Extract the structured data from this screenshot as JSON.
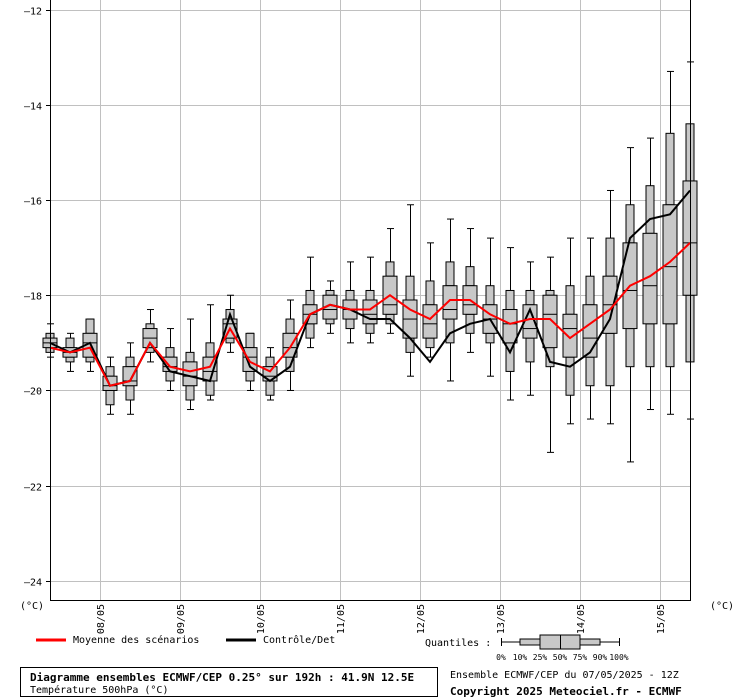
{
  "chart_data": {
    "type": "box",
    "y_unit_label": "(°C)",
    "ylim": [
      -24.4,
      -11.8
    ],
    "y_ticks": [
      -12,
      -14,
      -16,
      -18,
      -20,
      -22,
      -24
    ],
    "x_tick_labels": [
      "08/05",
      "09/05",
      "10/05",
      "11/05",
      "12/05",
      "13/05",
      "14/05",
      "15/05"
    ],
    "grid": true,
    "legend": [
      {
        "label": "Moyenne des scénarios",
        "color": "#ff0000"
      },
      {
        "label": "Contrôle/Det",
        "color": "#000000"
      }
    ],
    "quantiles_label": "Quantiles :",
    "quantile_names": [
      "0%",
      "10%",
      "25%",
      "50%",
      "75%",
      "90%",
      "100%"
    ],
    "steps": [
      {
        "min": -19.3,
        "p10": -19.2,
        "p25": -19.1,
        "median": -19.0,
        "p75": -18.9,
        "p90": -18.8,
        "max": -18.6,
        "mean": -19.1,
        "control": -19.0
      },
      {
        "min": -19.6,
        "p10": -19.4,
        "p25": -19.3,
        "median": -19.2,
        "p75": -19.1,
        "p90": -18.9,
        "max": -18.8,
        "mean": -19.2,
        "control": -19.2
      },
      {
        "min": -19.6,
        "p10": -19.4,
        "p25": -19.3,
        "median": -19.0,
        "p75": -18.8,
        "p90": -18.5,
        "max": -18.5,
        "mean": -19.1,
        "control": -19.0
      },
      {
        "min": -20.5,
        "p10": -20.3,
        "p25": -20.0,
        "median": -19.9,
        "p75": -19.7,
        "p90": -19.5,
        "max": -19.3,
        "mean": -19.9,
        "control": -19.9
      },
      {
        "min": -20.5,
        "p10": -20.2,
        "p25": -19.9,
        "median": -19.8,
        "p75": -19.5,
        "p90": -19.3,
        "max": -19.0,
        "mean": -19.8,
        "control": -19.8
      },
      {
        "min": -19.4,
        "p10": -19.2,
        "p25": -19.1,
        "median": -18.9,
        "p75": -18.7,
        "p90": -18.6,
        "max": -18.3,
        "mean": -19.0,
        "control": -19.0
      },
      {
        "min": -20.0,
        "p10": -19.8,
        "p25": -19.6,
        "median": -19.5,
        "p75": -19.3,
        "p90": -19.1,
        "max": -18.7,
        "mean": -19.5,
        "control": -19.6
      },
      {
        "min": -20.4,
        "p10": -20.2,
        "p25": -19.9,
        "median": -19.7,
        "p75": -19.4,
        "p90": -19.2,
        "max": -18.5,
        "mean": -19.6,
        "control": -19.7
      },
      {
        "min": -20.2,
        "p10": -20.1,
        "p25": -19.8,
        "median": -19.6,
        "p75": -19.3,
        "p90": -19.0,
        "max": -18.2,
        "mean": -19.5,
        "control": -19.8
      },
      {
        "min": -19.2,
        "p10": -19.0,
        "p25": -18.9,
        "median": -18.6,
        "p75": -18.5,
        "p90": -18.3,
        "max": -18.0,
        "mean": -18.7,
        "control": -18.4
      },
      {
        "min": -20.0,
        "p10": -19.8,
        "p25": -19.6,
        "median": -19.3,
        "p75": -19.1,
        "p90": -18.8,
        "max": -18.8,
        "mean": -19.4,
        "control": -19.5
      },
      {
        "min": -20.2,
        "p10": -20.1,
        "p25": -19.8,
        "median": -19.7,
        "p75": -19.5,
        "p90": -19.3,
        "max": -19.1,
        "mean": -19.6,
        "control": -19.8
      },
      {
        "min": -20.0,
        "p10": -19.6,
        "p25": -19.3,
        "median": -19.1,
        "p75": -18.8,
        "p90": -18.5,
        "max": -18.1,
        "mean": -19.1,
        "control": -19.5
      },
      {
        "min": -19.1,
        "p10": -18.9,
        "p25": -18.6,
        "median": -18.4,
        "p75": -18.2,
        "p90": -17.9,
        "max": -17.2,
        "mean": -18.4,
        "control": -18.4
      },
      {
        "min": -18.8,
        "p10": -18.6,
        "p25": -18.5,
        "median": -18.3,
        "p75": -18.0,
        "p90": -17.9,
        "max": -17.7,
        "mean": -18.2,
        "control": -18.2
      },
      {
        "min": -19.0,
        "p10": -18.7,
        "p25": -18.5,
        "median": -18.3,
        "p75": -18.1,
        "p90": -17.9,
        "max": -17.3,
        "mean": -18.3,
        "control": -18.3
      },
      {
        "min": -19.0,
        "p10": -18.8,
        "p25": -18.6,
        "median": -18.4,
        "p75": -18.1,
        "p90": -17.9,
        "max": -17.2,
        "mean": -18.3,
        "control": -18.5
      },
      {
        "min": -18.8,
        "p10": -18.6,
        "p25": -18.4,
        "median": -18.2,
        "p75": -17.6,
        "p90": -17.3,
        "max": -16.6,
        "mean": -18.0,
        "control": -18.5
      },
      {
        "min": -19.7,
        "p10": -19.2,
        "p25": -18.9,
        "median": -18.5,
        "p75": -18.1,
        "p90": -17.6,
        "max": -16.1,
        "mean": -18.3,
        "control": -18.9
      },
      {
        "min": -19.3,
        "p10": -19.1,
        "p25": -18.9,
        "median": -18.6,
        "p75": -18.2,
        "p90": -17.7,
        "max": -16.9,
        "mean": -18.5,
        "control": -19.4
      },
      {
        "min": -19.8,
        "p10": -19.0,
        "p25": -18.5,
        "median": -18.3,
        "p75": -17.8,
        "p90": -17.3,
        "max": -16.4,
        "mean": -18.1,
        "control": -18.8
      },
      {
        "min": -19.2,
        "p10": -18.8,
        "p25": -18.4,
        "median": -18.2,
        "p75": -17.8,
        "p90": -17.4,
        "max": -16.6,
        "mean": -18.1,
        "control": -18.6
      },
      {
        "min": -19.7,
        "p10": -19.0,
        "p25": -18.8,
        "median": -18.5,
        "p75": -18.2,
        "p90": -17.8,
        "max": -16.8,
        "mean": -18.4,
        "control": -18.5
      },
      {
        "min": -20.2,
        "p10": -19.6,
        "p25": -19.0,
        "median": -18.6,
        "p75": -18.3,
        "p90": -17.9,
        "max": -17.0,
        "mean": -18.6,
        "control": -19.2
      },
      {
        "min": -20.1,
        "p10": -19.4,
        "p25": -18.9,
        "median": -18.7,
        "p75": -18.2,
        "p90": -17.9,
        "max": -17.3,
        "mean": -18.5,
        "control": -18.3
      },
      {
        "min": -21.3,
        "p10": -19.5,
        "p25": -19.1,
        "median": -18.4,
        "p75": -18.0,
        "p90": -17.9,
        "max": -17.2,
        "mean": -18.5,
        "control": -19.4
      },
      {
        "min": -20.7,
        "p10": -20.1,
        "p25": -19.3,
        "median": -18.7,
        "p75": -18.4,
        "p90": -17.8,
        "max": -16.8,
        "mean": -18.9,
        "control": -19.5
      },
      {
        "min": -20.6,
        "p10": -19.9,
        "p25": -19.3,
        "median": -18.9,
        "p75": -18.2,
        "p90": -17.6,
        "max": -16.8,
        "mean": -18.6,
        "control": -19.2
      },
      {
        "min": -20.7,
        "p10": -19.9,
        "p25": -18.8,
        "median": -18.2,
        "p75": -17.6,
        "p90": -16.8,
        "max": -15.8,
        "mean": -18.3,
        "control": -18.5
      },
      {
        "min": -21.5,
        "p10": -19.5,
        "p25": -18.7,
        "median": -17.9,
        "p75": -16.9,
        "p90": -16.1,
        "max": -14.9,
        "mean": -17.8,
        "control": -16.8
      },
      {
        "min": -20.4,
        "p10": -19.5,
        "p25": -18.6,
        "median": -17.8,
        "p75": -16.7,
        "p90": -15.7,
        "max": -14.7,
        "mean": -17.6,
        "control": -16.4
      },
      {
        "min": -20.5,
        "p10": -19.5,
        "p25": -18.6,
        "median": -17.4,
        "p75": -16.1,
        "p90": -14.6,
        "max": -13.3,
        "mean": -17.3,
        "control": -16.3
      },
      {
        "min": -20.6,
        "p10": -19.4,
        "p25": -18.0,
        "median": -16.9,
        "p75": -15.6,
        "p90": -14.4,
        "max": -13.1,
        "mean": -16.9,
        "control": -15.8
      }
    ]
  },
  "footer": {
    "title": "Diagramme ensembles ECMWF/CEP 0.25° sur 192h : 41.9N 12.5E",
    "subtitle": "Température 500hPa (°C)",
    "ensemble": "Ensemble ECMWF/CEP du 07/05/2025 - 12Z",
    "copyright": "Copyright 2025 Meteociel.fr - ECMWF"
  }
}
